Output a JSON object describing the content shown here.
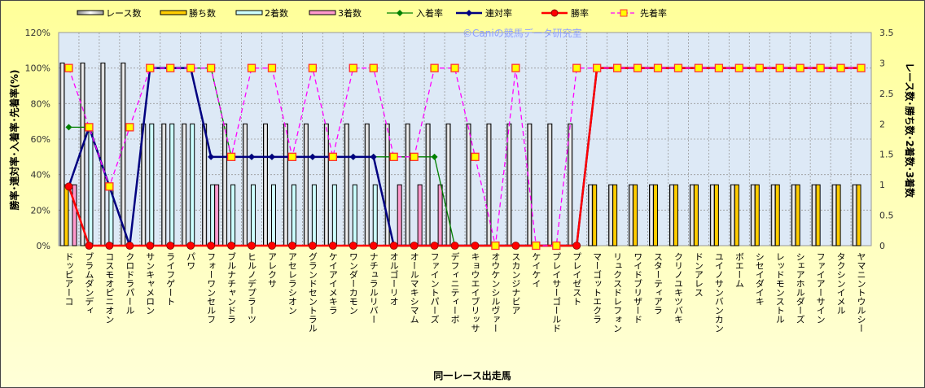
{
  "chart_data": {
    "type": "bar+line",
    "watermark": "©Caniの競馬データ研究室",
    "xlabel": "同一レース出走馬",
    "ylabel_left": "勝率･連対率･入着率･先着率(%)",
    "ylabel_right": "レース数･勝ち数･2着数･3着数",
    "ylim_left": [
      0,
      120
    ],
    "yticks_left": [
      "0%",
      "20%",
      "40%",
      "60%",
      "80%",
      "100%",
      "120%"
    ],
    "ylim_right": [
      0,
      3.5
    ],
    "yticks_right": [
      "0",
      "0.5",
      "1",
      "1.5",
      "2",
      "2.5",
      "3",
      "3.5"
    ],
    "grid": true,
    "legend_position": "top",
    "categories": [
      "ドッピアーコ",
      "ブラムダンディ",
      "コスモオピニオン",
      "クロドラパール",
      "サンキャメロン",
      "ライフゲート",
      "パワ",
      "フォーワンセルフ",
      "ブルナチャンドラ",
      "ヒルノデプラーツ",
      "アレクサ",
      "アセレラシオン",
      "グランドセントラル",
      "ケイアイメキラ",
      "ワンダーカモン",
      "ナチュラルリバー",
      "オルゴーリオ",
      "オールマキシマム",
      "ファイントパーズ",
      "デフィニティーボ",
      "キョウエイブリッサ",
      "オウケンシルヴァー",
      "スカンジナビア",
      "ケイケイ",
      "プレイサーゴールド",
      "プレイゼスト",
      "マーゴットエクラ",
      "リュクスドレフォン",
      "ワイドブリザード",
      "スターティアラ",
      "クリノユキツバキ",
      "ドンアレス",
      "ユイノサンバンカン",
      "ボエーム",
      "シセイダイキ",
      "レッドモンストル",
      "シェアホルダーズ",
      "ファイアーサイン",
      "タクシンイメル",
      "ヤマニントウルシー"
    ],
    "bar_series": [
      {
        "name": "レース数",
        "axis": "right",
        "color": "#d8d8d8",
        "values": [
          3,
          3,
          3,
          3,
          2,
          2,
          2,
          2,
          2,
          2,
          2,
          2,
          2,
          2,
          2,
          2,
          2,
          2,
          2,
          2,
          2,
          2,
          2,
          2,
          2,
          2,
          1,
          1,
          1,
          1,
          1,
          1,
          1,
          1,
          1,
          1,
          1,
          1,
          1,
          1
        ]
      },
      {
        "name": "勝ち数",
        "axis": "right",
        "color": "#ffcc00",
        "values": [
          1,
          0,
          0,
          0,
          0,
          0,
          0,
          0,
          0,
          0,
          0,
          0,
          0,
          0,
          0,
          0,
          0,
          0,
          0,
          0,
          0,
          0,
          0,
          0,
          0,
          0,
          1,
          1,
          1,
          1,
          1,
          1,
          1,
          1,
          1,
          1,
          1,
          1,
          1,
          1
        ]
      },
      {
        "name": "2着数",
        "axis": "right",
        "color": "#ccffff",
        "values": [
          0,
          2,
          1,
          0,
          2,
          2,
          2,
          1,
          1,
          1,
          1,
          1,
          1,
          1,
          1,
          1,
          0,
          0,
          0,
          0,
          0,
          0,
          0,
          0,
          0,
          0,
          0,
          0,
          0,
          0,
          0,
          0,
          0,
          0,
          0,
          0,
          0,
          0,
          0,
          0
        ]
      },
      {
        "name": "3着数",
        "axis": "right",
        "color": "#ff99cc",
        "values": [
          1,
          0,
          0,
          0,
          0,
          0,
          0,
          1,
          0,
          0,
          0,
          0,
          0,
          0,
          0,
          0,
          1,
          1,
          1,
          0,
          0,
          0,
          0,
          0,
          0,
          0,
          0,
          0,
          0,
          0,
          0,
          0,
          0,
          0,
          0,
          0,
          0,
          0,
          0,
          0
        ]
      }
    ],
    "line_series": [
      {
        "name": "入着率",
        "axis": "left",
        "color": "#008000",
        "marker": "diamond",
        "values": [
          66.7,
          66.7,
          33.3,
          0,
          100,
          100,
          100,
          100,
          50,
          50,
          50,
          50,
          50,
          50,
          50,
          50,
          50,
          50,
          50,
          0,
          0,
          0,
          0,
          0,
          0,
          0,
          100,
          100,
          100,
          100,
          100,
          100,
          100,
          100,
          100,
          100,
          100,
          100,
          100,
          100
        ]
      },
      {
        "name": "連対率",
        "axis": "left",
        "color": "#000080",
        "marker": "diamond",
        "values": [
          33.3,
          66.7,
          33.3,
          0,
          100,
          100,
          100,
          50,
          50,
          50,
          50,
          50,
          50,
          50,
          50,
          50,
          0,
          0,
          0,
          0,
          0,
          0,
          0,
          0,
          0,
          0,
          100,
          100,
          100,
          100,
          100,
          100,
          100,
          100,
          100,
          100,
          100,
          100,
          100,
          100
        ]
      },
      {
        "name": "勝率",
        "axis": "left",
        "color": "#ff0000",
        "marker": "circle",
        "values": [
          33.3,
          0,
          0,
          0,
          0,
          0,
          0,
          0,
          0,
          0,
          0,
          0,
          0,
          0,
          0,
          0,
          0,
          0,
          0,
          0,
          0,
          0,
          0,
          0,
          0,
          0,
          100,
          100,
          100,
          100,
          100,
          100,
          100,
          100,
          100,
          100,
          100,
          100,
          100,
          100
        ]
      },
      {
        "name": "先着率",
        "axis": "left",
        "color": "#ff00ff",
        "marker": "square",
        "dashed": true,
        "values": [
          100,
          66.7,
          33.3,
          66.7,
          100,
          100,
          100,
          100,
          50,
          100,
          100,
          50,
          100,
          50,
          100,
          100,
          50,
          50,
          100,
          100,
          50,
          0,
          100,
          0,
          0,
          100,
          100,
          100,
          100,
          100,
          100,
          100,
          100,
          100,
          100,
          100,
          100,
          100,
          100,
          100
        ]
      }
    ]
  }
}
